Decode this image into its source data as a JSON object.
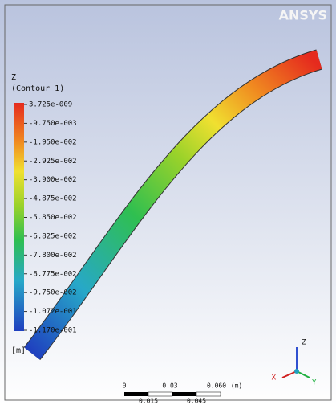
{
  "logo": "ANSYS",
  "legend": {
    "variable": "Z",
    "contour": "(Contour 1)",
    "labels": [
      "3.725e-009",
      "-9.750e-003",
      "-1.950e-002",
      "-2.925e-002",
      "-3.900e-002",
      "-4.875e-002",
      "-5.850e-002",
      "-6.825e-002",
      "-7.800e-002",
      "-8.775e-002",
      "-9.750e-002",
      "-1.072e-001",
      "-1.170e-001"
    ],
    "unit": "[m]"
  },
  "scale_bar": {
    "top_labels": [
      "0",
      "0.03",
      "0.060",
      "(m)"
    ],
    "bottom_labels": [
      "0.015",
      "0.045"
    ]
  },
  "triad": {
    "z": "Z",
    "x": "X",
    "y": "Y"
  }
}
